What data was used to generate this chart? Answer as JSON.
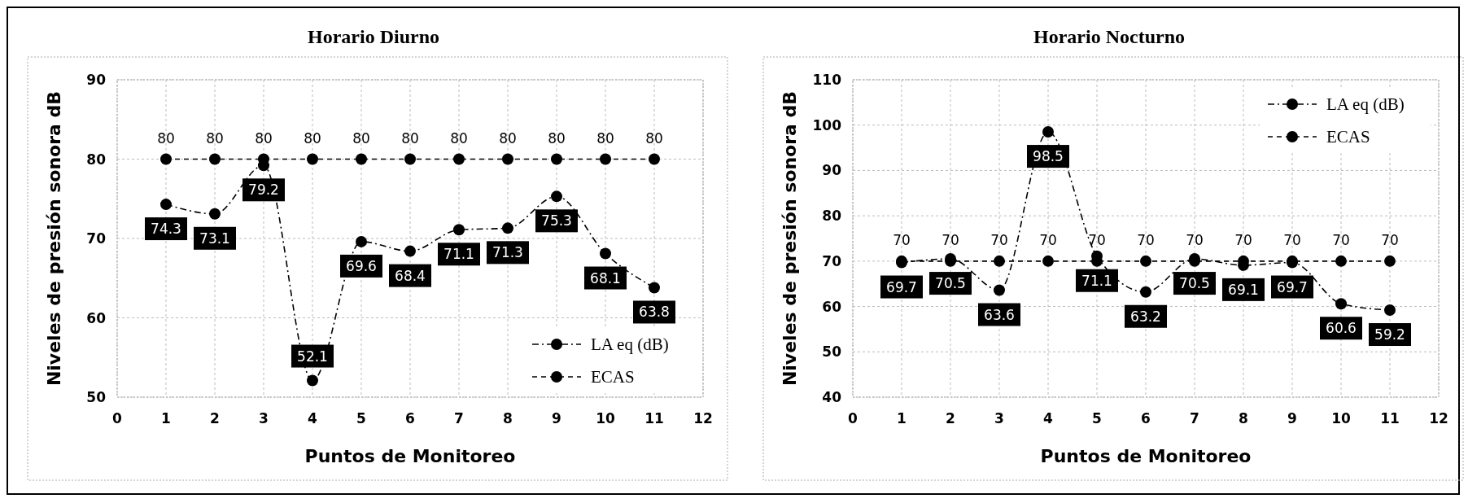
{
  "chart_data": [
    {
      "type": "line",
      "title": "Horario Diurno",
      "xlabel": "Puntos de Monitoreo",
      "ylabel": "Niveles de presión sonora dB",
      "xlim": [
        0,
        12
      ],
      "xticks": [
        0,
        1,
        2,
        3,
        4,
        5,
        6,
        7,
        8,
        9,
        10,
        11,
        12
      ],
      "ylim": [
        50,
        90
      ],
      "yticks": [
        50,
        60,
        70,
        80,
        90
      ],
      "grid": true,
      "legend": "bottom right",
      "marker": "circle",
      "data_labels": true,
      "series": [
        {
          "name": "LA eq (dB)",
          "color": "#000000",
          "line_style": "dashed",
          "x": [
            1,
            2,
            3,
            4,
            5,
            6,
            7,
            8,
            9,
            10,
            11
          ],
          "values": [
            74.3,
            73.1,
            79.2,
            52.1,
            69.6,
            68.4,
            71.1,
            71.3,
            75.3,
            68.1,
            63.8
          ]
        },
        {
          "name": "ECAS",
          "color": "#000000",
          "line_style": "dashed",
          "x": [
            1,
            2,
            3,
            4,
            5,
            6,
            7,
            8,
            9,
            10,
            11
          ],
          "values": [
            80,
            80,
            80,
            80,
            80,
            80,
            80,
            80,
            80,
            80,
            80
          ]
        }
      ]
    },
    {
      "type": "line",
      "title": "Horario Nocturno",
      "xlabel": "Puntos de Monitoreo",
      "ylabel": "Niveles de presión sonora dB",
      "xlim": [
        0,
        12
      ],
      "xticks": [
        0,
        1,
        2,
        3,
        4,
        5,
        6,
        7,
        8,
        9,
        10,
        11,
        12
      ],
      "ylim": [
        40,
        110
      ],
      "yticks": [
        40,
        50,
        60,
        70,
        80,
        90,
        100,
        110
      ],
      "grid": true,
      "legend": "top right",
      "marker": "circle",
      "data_labels": true,
      "series": [
        {
          "name": "LA eq (dB)",
          "color": "#000000",
          "line_style": "dashed",
          "x": [
            1,
            2,
            3,
            4,
            5,
            6,
            7,
            8,
            9,
            10,
            11
          ],
          "values": [
            69.7,
            70.5,
            63.6,
            98.5,
            71.1,
            63.2,
            70.5,
            69.1,
            69.7,
            60.6,
            59.2
          ]
        },
        {
          "name": "ECAS",
          "color": "#000000",
          "line_style": "dashed",
          "x": [
            1,
            2,
            3,
            4,
            5,
            6,
            7,
            8,
            9,
            10,
            11
          ],
          "values": [
            70,
            70,
            70,
            70,
            70,
            70,
            70,
            70,
            70,
            70,
            70
          ]
        }
      ]
    }
  ]
}
